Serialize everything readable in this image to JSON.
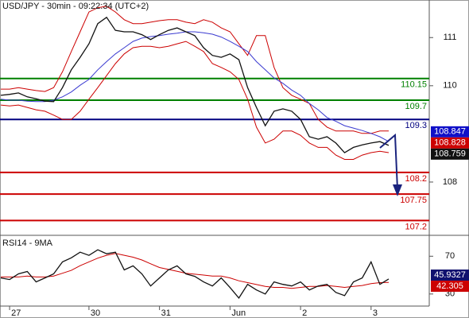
{
  "chart_data": [
    {
      "type": "line",
      "title": "USD/JPY - 30min - 09:22:34 (UTC+2)",
      "series": [
        {
          "color": "#cc0000",
          "values": [
            109.93,
            109.93,
            109.96,
            109.93,
            109.9,
            109.88,
            109.96,
            110.29,
            110.71,
            111.12,
            111.53,
            111.62,
            111.65,
            111.53,
            111.37,
            111.29,
            111.29,
            111.32,
            111.35,
            111.37,
            111.37,
            111.32,
            111.29,
            111.37,
            111.32,
            111.2,
            111.12,
            110.87,
            110.63,
            111.04,
            111.04,
            110.38,
            109.96,
            109.8,
            109.72,
            109.63,
            109.3,
            109.14,
            109.06,
            109.06,
            109.06,
            109.01,
            109.01,
            109.06,
            109.06
          ]
        },
        {
          "color": "#cc0000",
          "values": [
            109.6,
            109.58,
            109.6,
            109.55,
            109.5,
            109.47,
            109.39,
            109.3,
            109.3,
            109.47,
            109.72,
            109.96,
            110.21,
            110.46,
            110.66,
            110.79,
            110.82,
            110.82,
            110.79,
            110.82,
            110.87,
            110.92,
            110.82,
            110.71,
            110.46,
            110.38,
            110.29,
            110.13,
            109.72,
            109.14,
            108.81,
            108.89,
            109.06,
            109.06,
            108.97,
            108.81,
            108.72,
            108.72,
            108.56,
            108.47,
            108.47,
            108.56,
            108.61,
            108.64,
            108.61
          ]
        },
        {
          "color": "#3a3ad0",
          "values": [
            109.72,
            109.7,
            109.7,
            109.68,
            109.67,
            109.67,
            109.7,
            109.77,
            109.87,
            110.01,
            110.13,
            110.33,
            110.5,
            110.66,
            110.79,
            110.92,
            110.99,
            111.02,
            111.04,
            111.07,
            111.09,
            111.12,
            111.12,
            111.1,
            111.07,
            111.01,
            110.92,
            110.82,
            110.71,
            110.5,
            110.33,
            110.16,
            110.05,
            109.91,
            109.8,
            109.63,
            109.5,
            109.34,
            109.26,
            109.17,
            109.12,
            109.07,
            109.01,
            108.94,
            108.84
          ]
        },
        {
          "color": "#111111",
          "values": [
            109.8,
            109.82,
            109.85,
            109.77,
            109.73,
            109.68,
            109.67,
            109.96,
            110.33,
            110.59,
            110.87,
            111.29,
            111.42,
            111.15,
            111.12,
            111.12,
            111.06,
            110.96,
            111.06,
            111.15,
            111.2,
            111.12,
            111.04,
            110.79,
            110.63,
            110.59,
            110.66,
            110.54,
            109.96,
            109.55,
            109.17,
            109.47,
            109.52,
            109.47,
            109.3,
            108.94,
            108.89,
            108.94,
            108.81,
            108.61,
            108.72,
            108.77,
            108.81,
            108.84,
            108.76
          ]
        }
      ],
      "levels": [
        {
          "value": 110.15,
          "color": "#008000"
        },
        {
          "value": 109.7,
          "color": "#008000"
        },
        {
          "value": 109.3,
          "color": "#000080"
        },
        {
          "value": 108.2,
          "color": "#cc0000"
        },
        {
          "value": 107.75,
          "color": "#cc0000"
        },
        {
          "value": 107.2,
          "color": "#cc0000"
        }
      ],
      "price_labels": [
        {
          "value": 108.847,
          "color": "#1010c8"
        },
        {
          "value": 108.828,
          "color": "#cc0000"
        },
        {
          "value": 108.759,
          "color": "#111111"
        }
      ],
      "ylim": [
        106.91,
        111.78
      ],
      "yticks": [
        111,
        110,
        108
      ]
    },
    {
      "type": "line",
      "title": "RSI14 - 9MA",
      "categories": [
        null,
        "27",
        null,
        null,
        null,
        null,
        null,
        null,
        null,
        null,
        "30",
        null,
        null,
        null,
        null,
        null,
        null,
        null,
        "31",
        null,
        null,
        null,
        null,
        null,
        null,
        null,
        "Jun",
        null,
        null,
        null,
        null,
        null,
        null,
        null,
        "2",
        null,
        null,
        null,
        null,
        null,
        null,
        null,
        "3",
        null,
        null
      ],
      "series": [
        {
          "color": "#cc0000",
          "values": [
            48,
            48,
            48,
            49,
            48,
            48,
            49,
            52,
            55,
            60,
            64,
            68,
            71,
            73,
            71,
            69,
            66,
            62,
            58,
            56,
            54,
            52,
            51,
            50,
            49,
            49,
            47,
            44,
            42,
            40,
            38,
            37,
            37,
            36,
            37,
            38,
            38,
            39,
            38,
            37,
            38,
            39,
            41,
            42,
            42.3
          ]
        },
        {
          "color": "#111111",
          "values": [
            47.0,
            45.3,
            51.3,
            53.8,
            42.8,
            47.0,
            51.3,
            64.0,
            68.3,
            74.3,
            70.9,
            76.8,
            72.6,
            74.3,
            55.5,
            59.8,
            51.3,
            38.5,
            47.0,
            55.5,
            59.8,
            51.3,
            48.7,
            42.8,
            38.5,
            47.0,
            36.8,
            25.7,
            40.2,
            34.3,
            30.0,
            42.8,
            40.2,
            38.5,
            42.8,
            34.3,
            38.5,
            40.2,
            31.7,
            28.3,
            42.8,
            47.0,
            64.0,
            40.2,
            45.9
          ]
        }
      ],
      "price_labels": [
        {
          "value": 45.9327,
          "color": "#10106e"
        },
        {
          "value": 42.305,
          "color": "#cc0000"
        }
      ],
      "ylim": [
        17.2,
        91.3
      ],
      "yticks": [
        70,
        30
      ]
    }
  ]
}
